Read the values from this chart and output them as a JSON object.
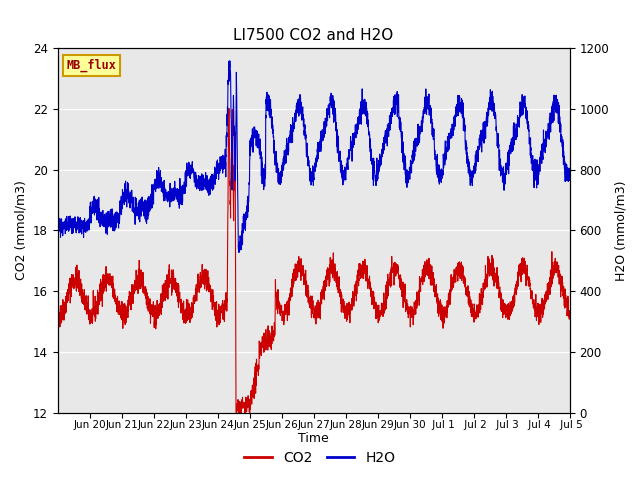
{
  "title": "LI7500 CO2 and H2O",
  "xlabel": "Time",
  "ylabel_left": "CO2 (mmol/m3)",
  "ylabel_right": "H2O (mmol/m3)",
  "ylim_left": [
    12,
    24
  ],
  "ylim_right": [
    0,
    1200
  ],
  "yticks_left": [
    12,
    14,
    16,
    18,
    20,
    22,
    24
  ],
  "yticks_right": [
    0,
    200,
    400,
    600,
    800,
    1000,
    1200
  ],
  "bg_color": "#e8e8e8",
  "fig_bg": "#ffffff",
  "co2_color": "#cc0000",
  "h2o_color": "#0000cc",
  "watermark_text": "MB_flux",
  "watermark_bg": "#ffff99",
  "watermark_border": "#cc9900",
  "watermark_text_color": "#990000",
  "n_points": 3000,
  "seed": 42,
  "tick_labels": [
    "Jun 20",
    "Jun 21",
    "Jun 22",
    "Jun 23",
    "Jun 24",
    "Jun 25",
    "Jun 26",
    "Jun 27",
    "Jun 28",
    "Jun 29",
    "Jun 30",
    " Jul 1",
    " Jul 2",
    " Jul 3",
    " Jul 4",
    " Jul 5"
  ],
  "tick_positions": [
    1,
    2,
    3,
    4,
    5,
    6,
    7,
    8,
    9,
    10,
    11,
    12,
    13,
    14,
    15,
    16
  ]
}
